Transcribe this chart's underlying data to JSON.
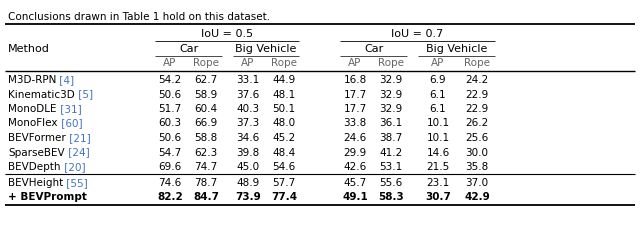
{
  "caption": "Conclusions drawn in Table 1 hold on this dataset.",
  "methods": [
    [
      "M3D-RPN",
      " [4]"
    ],
    [
      "Kinematic3D",
      " [5]"
    ],
    [
      "MonoDLE",
      " [31]"
    ],
    [
      "MonoFlex",
      " [60]"
    ],
    [
      "BEVFormer",
      " [21]"
    ],
    [
      "SparseBEV",
      " [24]"
    ],
    [
      "BEVDepth",
      " [20]"
    ]
  ],
  "methods2": [
    [
      "BEVHeight",
      " [55]"
    ],
    [
      "+ BEVPrompt",
      ""
    ]
  ],
  "data": [
    [
      54.2,
      62.7,
      33.1,
      44.9,
      16.8,
      32.9,
      6.9,
      24.2
    ],
    [
      50.6,
      58.9,
      37.6,
      48.1,
      17.7,
      32.9,
      6.1,
      22.9
    ],
    [
      51.7,
      60.4,
      40.3,
      50.1,
      17.7,
      32.9,
      6.1,
      22.9
    ],
    [
      60.3,
      66.9,
      37.3,
      48.0,
      33.8,
      36.1,
      10.1,
      26.2
    ],
    [
      50.6,
      58.8,
      34.6,
      45.2,
      24.6,
      38.7,
      10.1,
      25.6
    ],
    [
      54.7,
      62.3,
      39.8,
      48.4,
      29.9,
      41.2,
      14.6,
      30.0
    ],
    [
      69.6,
      74.7,
      45.0,
      54.6,
      42.6,
      53.1,
      21.5,
      35.8
    ]
  ],
  "data2": [
    [
      74.6,
      78.7,
      48.9,
      57.7,
      45.7,
      55.6,
      23.1,
      37.0
    ],
    [
      82.2,
      84.7,
      73.9,
      77.4,
      49.1,
      58.3,
      30.7,
      42.9
    ]
  ],
  "figsize": [
    6.4,
    2.42
  ],
  "dpi": 100,
  "ref_color": "#4472C4",
  "gray_color": "#666666",
  "black": "#000000",
  "bg": "#ffffff"
}
